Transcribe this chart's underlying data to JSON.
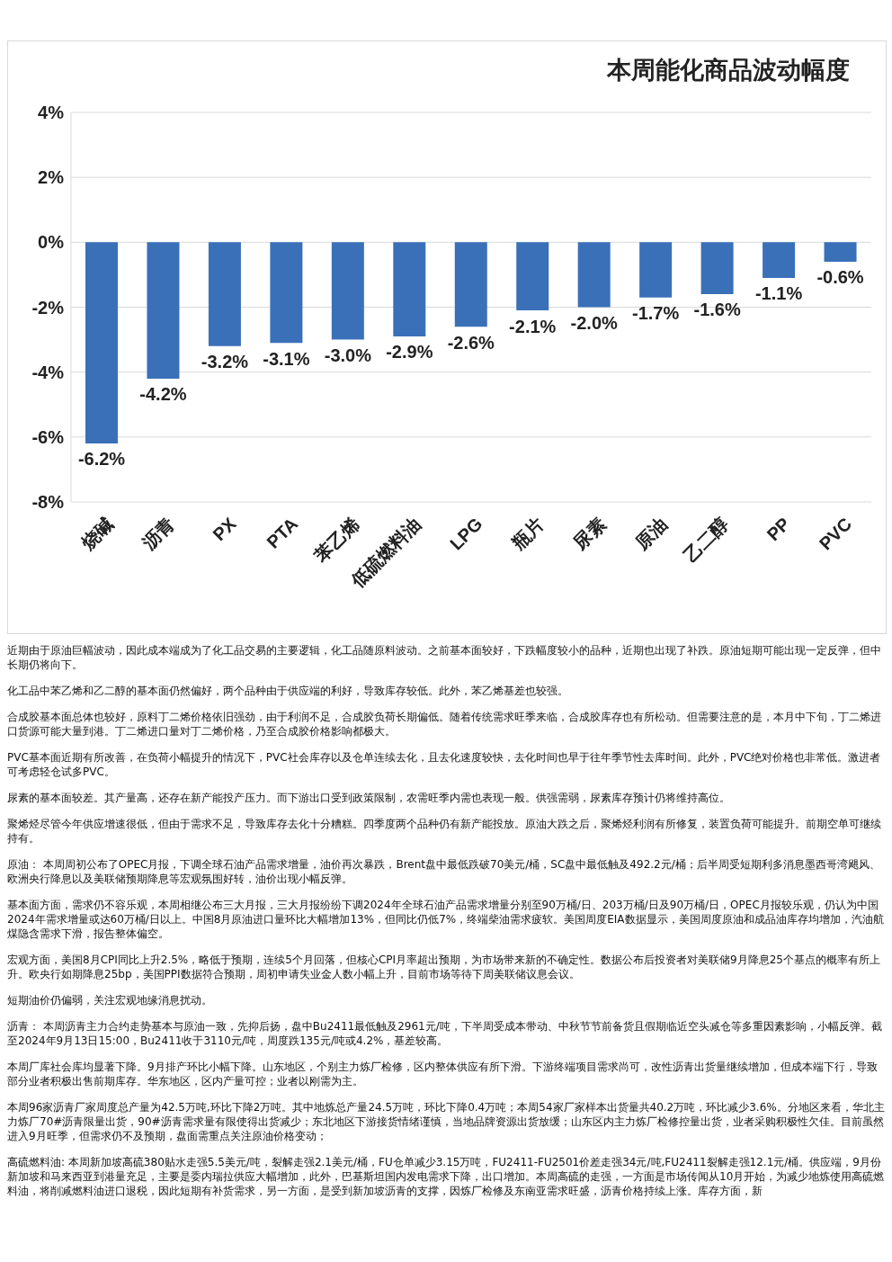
{
  "chart_data": {
    "type": "bar",
    "title": "本周能化商品波动幅度",
    "categories": [
      "烧碱",
      "沥青",
      "PX",
      "PTA",
      "苯乙烯",
      "低硫燃料油",
      "LPG",
      "瓶片",
      "尿素",
      "原油",
      "乙二醇",
      "PP",
      "PVC"
    ],
    "values": [
      -6.2,
      -4.2,
      -3.2,
      -3.1,
      -3.0,
      -2.9,
      -2.6,
      -2.1,
      -2.0,
      -1.7,
      -1.6,
      -1.1,
      -0.6
    ],
    "value_labels": [
      "-6.2%",
      "-4.2%",
      "-3.2%",
      "-3.1%",
      "-3.0%",
      "-2.9%",
      "-2.6%",
      "-2.1%",
      "-2.0%",
      "-1.7%",
      "-1.6%",
      "-1.1%",
      "-0.6%"
    ],
    "color": "#3a70b8",
    "ylim": [
      -8,
      4
    ],
    "yticks": [
      {
        "value": -8,
        "label": "-8%"
      },
      {
        "value": -6,
        "label": "-6%"
      },
      {
        "value": -4,
        "label": "-4%"
      },
      {
        "value": -2,
        "label": "-2%"
      },
      {
        "value": 0,
        "label": "0%"
      },
      {
        "value": 2,
        "label": "2%"
      },
      {
        "value": 4,
        "label": "4%"
      }
    ],
    "grid": "y",
    "annotations": [
      "近期由于原油巨幅波动，因此成本端成为了化工品交易的主要逻辑，化工品随原料波动。之前基本面较好，下跌幅度较小的品种，近期也出现了补跌。原油短期可能出现一定反弹，但中长期仍将向下。",
      "化工品中苯乙烯和乙二醇的基本面仍然偏好，两个品种由于供应端的利好，导致库存较低。此外，苯乙烯基差也较强。",
      "合成胶基本面总体也较好，原料丁二烯价格依旧强劲，由于利润不足，合成胶负荷长期偏低。随着传统需求旺季来临，合成胶库存也有所松动。但需要注意的是，本月中下旬，丁二烯进口货源可能大量到港。丁二烯进口量对丁二烯价格，乃至合成胶价格影响都极大。",
      "PVC基本面近期有所改善，在负荷小幅提升的情况下，PVC社会库存以及仓单连续去化，且去化速度较快，去化时间也早于往年季节性去库时间。此外，PVC绝对价格也非常低。激进者可考虑轻仓试多PVC。",
      "尿素的基本面较差。其产量高，还存在新产能投产压力。而下游出口受到政策限制，农需旺季内需也表现一般。供强需弱，尿素库存预计仍将维持高位。",
      "聚烯烃尽管今年供应增速很低，但由于需求不足，导致库存去化十分糟糕。四季度两个品种仍有新产能投放。原油大跌之后，聚烯烃利润有所修复，装置负荷可能提升。前期空单可继续持有。",
      "原油： 本周周初公布了OPEC月报，下调全球石油产品需求增量，油价再次暴跌，Brent盘中最低跌破70美元/桶，SC盘中最低触及492.2元/桶；后半周受短期利多消息墨西哥湾飓风、欧洲央行降息以及美联储预期降息等宏观氛围好转，油价出现小幅反弹。",
      "基本面方面，需求仍不容乐观，本周相继公布三大月报，三大月报纷纷下调2024年全球石油产品需求增量分别至90万桶/日、203万桶/日及90万桶/日，OPEC月报较乐观，仍认为中国2024年需求增量或达60万桶/日以上。中国8月原油进口量环比大幅增加13%，但同比仍低7%，终端柴油需求疲软。美国周度EIA数据显示，美国周度原油和成品油库存均增加，汽油航煤隐含需求下滑，报告整体偏空。",
      "宏观方面，美国8月CPI同比上升2.5%，略低于预期，连续5个月回落，但核心CPI月率超出预期，为市场带来新的不确定性。数据公布后投资者对美联储9月降息25个基点的概率有所上升。欧央行如期降息25bp，美国PPI数据符合预期，周初申请失业金人数小幅上升，目前市场等待下周美联储议息会议。",
      "短期油价仍偏弱，关注宏观地缘消息扰动。",
      "沥青： 本周沥青主力合约走势基本与原油一致，先抑后扬，盘中Bu2411最低触及2961元/吨，下半周受成本带动、中秋节节前备货且假期临近空头减仓等多重因素影响，小幅反弹。截至2024年9月13日15:00，Bu2411收于3110元/吨，周度跌135元/吨或4.2%，基差较高。",
      "本周厂库社会库均显著下降。9月排产环比小幅下降。山东地区，个别主力炼厂检修，区内整体供应有所下滑。下游终端项目需求尚可，改性沥青出货量继续增加，但成本端下行，导致部分业者积极出售前期库存。华东地区，区内产量可控；业者以刚需为主。",
      "本周96家沥青厂家周度总产量为42.5万吨,环比下降2万吨。其中地炼总产量24.5万吨，环比下降0.4万吨；本周54家厂家样本出货量共40.2万吨，环比减少3.6%。分地区来看，华北主力炼厂70#沥青限量出货，90#沥青需求量有限使得出货减少；东北地区下游接货情绪谨慎，当地品牌资源出货放缓；山东区内主力炼厂检修控量出货，业者采购积极性欠佳。目前虽然进入9月旺季，但需求仍不及预期，盘面需重点关注原油价格变动；",
      "高硫燃料油: 本周新加坡高硫380贴水走强5.5美元/吨，裂解走强2.1美元/桶，FU仓单减少3.15万吨，FU2411-FU2501价差走强34元/吨,FU2411裂解走强12.1元/桶。供应端，9月份新加坡和马来西亚到港量充足，主要是委内瑞拉供应大幅增加，此外，巴基斯坦国内发电需求下降，出口增加。本周高硫的走强，一方面是市场传闻从10月开始，为减少地炼使用高硫燃料油，将削减燃料油进口退税，因此短期有补货需求，另一方面，是受到新加坡沥青的支撑，因炼厂检修及东南亚需求旺盛，沥青价格持续上涨。库存方面，新"
    ]
  }
}
